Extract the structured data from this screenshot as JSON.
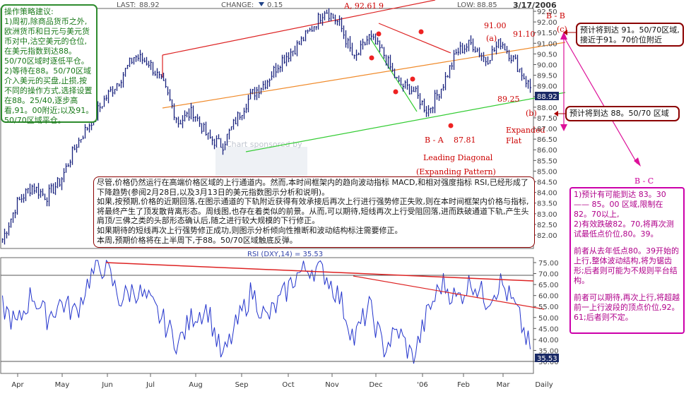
{
  "header": {
    "last_label": "LAST:",
    "last_value": "88.92",
    "change_label": "CHANGE:",
    "change_value": "0.15",
    "low_label": "LOW:",
    "low_value": "88.85",
    "date": "3/17/2006",
    "footer_right": "Daily"
  },
  "price_axis": [
    "92.50",
    "92.00",
    "91.50",
    "91.00",
    "90.50",
    "90.00",
    "89.50",
    "89.00",
    "88.50",
    "88.00",
    "87.50",
    "87.00",
    "86.50",
    "86.00",
    "85.50",
    "85.00",
    "84.50",
    "84.00",
    "83.50",
    "83.00",
    "82.50",
    "82.00"
  ],
  "rsi_axis": [
    "75.00",
    "70.00",
    "65.00",
    "60.00",
    "55.00",
    "50.00",
    "45.00",
    "40.00",
    "35.00",
    "30.00"
  ],
  "months": [
    "Apr",
    "May",
    "Jun",
    "Jul",
    "Aug",
    "Sep",
    "Oct",
    "Nov",
    "Dec",
    "'06",
    "Feb",
    "Mar",
    "Daily"
  ],
  "last_price_tag": "88.92",
  "rsi_title": "RSI (DXY,14) = 35.53",
  "rsi_last_tag": "35.53",
  "watermark": "Chart sponsored by",
  "annotations": {
    "a_peak": "A, 92.61",
    "a_peak_wave": "9",
    "b_b": "B - B",
    "c_paren": "(c)",
    "a_paren": "(a)",
    "b_paren": "(b)",
    "v91_00": "91.00",
    "v91_10": "91.10",
    "v89_25": "89.25",
    "b_a": "B - A",
    "v87_81": "87.81",
    "leading_diagonal": "Leading Diagonal",
    "expanding_pattern": "(Expanding Pattern)",
    "expanded": "Expanded",
    "flat": "Flat",
    "b_c": "B - C"
  },
  "strategy_box": [
    "操作策略建议:",
    "1)周初,除商品货币之外,欧洲货币和日元与美元货币对中,沽空美元的仓位,在美元指数到达88。50/70区域时逐低平仓。",
    "2)等待在88。50/70区域介入美元的买盘,止损,按不同的操作方式,选择设置在88。25/40,逐步高看,91。00附近;以及91。50/70区域平仓。"
  ],
  "commentary_box": [
    "尽管,价格仍然运行在高端价格区域的上行通道内。然而,本时间框架内的趋向波动指标 MACD,和相对强度指标 RSI,已经形成了下降趋势(参阅2月28日,以及3月13日的美元指数图示分析和说明)。",
    "如果,按预期,价格的近期回落,在图示通道的下轨附近获得有效承接后再次上行进行强势修正失败,则在本时间框架内价格与指标,将最终产生了顶发散背离形态。周线图,也存在着类似的前景。从而,可以期待,短线再次上行受阻回落,进而跌破通道下轨,产生头肩顶/三佛之类的头部形态确认后,随之进行较大规模的下行修正。",
    "如果期待的短线再次上行强势修正成功,则图示分析倾向性推断和波动结构标注需要修正。",
    "本周,预期价格将在上半周下,于88。50/70区域触底反弹。"
  ],
  "note_top": "预计将到达 91。50/70区域,接近于91。70价位附近",
  "note_mid": "预计将到达 88。50/70 区域",
  "note_bc": [
    "1)预计有可能到达 83。30 —— 85。00 区域,限制在82。70以上,",
    "2)有效跌破82。70,将再次测试最低点价位,80。39。",
    "前者从去年低点80。39开始的上行,整体波动结构,将为锯齿形;后者则可能为不规则平台结构。",
    "前者可以期待,再次上行,将超越前一上行波段的顶点价位,92。61;后者则不定。"
  ],
  "chart_data": {
    "type": "line",
    "title": "",
    "price_range": [
      81.5,
      92.7
    ],
    "price_ticks": [
      82.0,
      82.5,
      83.0,
      83.5,
      84.0,
      84.5,
      85.0,
      85.5,
      86.0,
      86.5,
      87.0,
      87.5,
      88.0,
      88.5,
      89.0,
      89.5,
      90.0,
      90.5,
      91.0,
      91.5,
      92.0,
      92.5
    ],
    "rsi_range": [
      28,
      77
    ],
    "rsi_ticks": [
      30,
      35,
      40,
      45,
      50,
      55,
      60,
      65,
      70,
      75
    ],
    "price_anchors": [
      {
        "label": "Apr",
        "close": 81.8
      },
      {
        "label": "",
        "close": 83.5
      },
      {
        "label": "",
        "close": 84.3
      },
      {
        "label": "May",
        "close": 83.8
      },
      {
        "label": "",
        "close": 84.6
      },
      {
        "label": "",
        "close": 86.2
      },
      {
        "label": "Jun",
        "close": 87.3
      },
      {
        "label": "",
        "close": 88.4
      },
      {
        "label": "",
        "close": 89.3
      },
      {
        "label": "Jul",
        "close": 90.4
      },
      {
        "label": "",
        "close": 90.1
      },
      {
        "label": "",
        "close": 89.0
      },
      {
        "label": "Aug",
        "close": 87.3
      },
      {
        "label": "",
        "close": 87.8
      },
      {
        "label": "",
        "close": 86.6
      },
      {
        "label": "Sep",
        "close": 86.2
      },
      {
        "label": "",
        "close": 87.5
      },
      {
        "label": "",
        "close": 88.6
      },
      {
        "label": "Oct",
        "close": 89.2
      },
      {
        "label": "",
        "close": 90.2
      },
      {
        "label": "",
        "close": 90.8
      },
      {
        "label": "Nov",
        "close": 91.6
      },
      {
        "label": "",
        "close": 92.61
      },
      {
        "label": "",
        "close": 91.9
      },
      {
        "label": "Dec",
        "close": 90.2
      },
      {
        "label": "",
        "close": 91.3
      },
      {
        "label": "",
        "close": 90.5
      },
      {
        "label": "'06",
        "close": 89.1
      },
      {
        "label": "",
        "close": 88.8
      },
      {
        "label": "",
        "close": 87.81
      },
      {
        "label": "",
        "close": 89.0
      },
      {
        "label": "Feb",
        "close": 90.6
      },
      {
        "label": "",
        "close": 91.0
      },
      {
        "label": "",
        "close": 90.2
      },
      {
        "label": "Mar",
        "close": 91.1
      },
      {
        "label": "",
        "close": 90.1
      },
      {
        "label": "",
        "close": 88.92
      }
    ],
    "rsi_anchors": [
      55,
      46,
      61,
      50,
      57,
      52,
      69,
      74,
      58,
      63,
      57,
      48,
      38,
      51,
      54,
      31,
      47,
      62,
      49,
      58,
      69,
      73,
      70,
      59,
      40,
      55,
      36,
      44,
      31,
      52,
      66,
      58,
      67,
      58,
      66,
      54,
      35.53
    ],
    "last_price": 88.92,
    "last_rsi": 35.53,
    "grid": false,
    "legend": "none"
  }
}
